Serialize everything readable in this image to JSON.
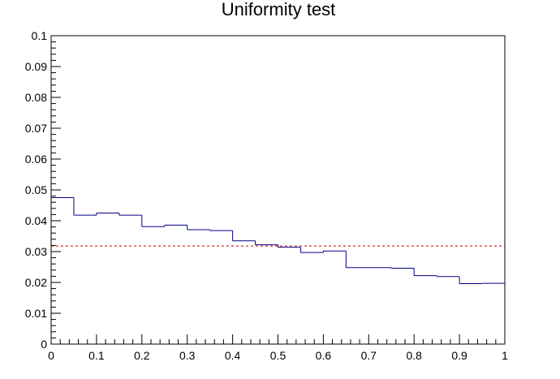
{
  "chart_data": {
    "type": "histogram",
    "title": "Uniformity test",
    "xlabel": "",
    "ylabel": "",
    "xlim": [
      0,
      1
    ],
    "ylim": [
      0,
      0.1
    ],
    "grid": false,
    "x_ticks": [
      "0",
      "0.1",
      "0.2",
      "0.3",
      "0.4",
      "0.5",
      "0.6",
      "0.7",
      "0.8",
      "0.9",
      "1"
    ],
    "y_ticks": [
      "0",
      "0.01",
      "0.02",
      "0.03",
      "0.04",
      "0.05",
      "0.06",
      "0.07",
      "0.08",
      "0.09",
      "0.1"
    ],
    "bin_edges": [
      0,
      0.05,
      0.1,
      0.15,
      0.2,
      0.25,
      0.3,
      0.35,
      0.4,
      0.45,
      0.5,
      0.55,
      0.6,
      0.65,
      0.7,
      0.75,
      0.8,
      0.85,
      0.9,
      0.95,
      1.0
    ],
    "values": [
      0.0475,
      0.0418,
      0.0425,
      0.0418,
      0.0381,
      0.0386,
      0.0371,
      0.0368,
      0.0335,
      0.0322,
      0.0314,
      0.0297,
      0.0302,
      0.0248,
      0.0248,
      0.0246,
      0.0222,
      0.0219,
      0.0196,
      0.0197
    ],
    "reference_line": {
      "y": 0.0318,
      "style": "dashed"
    },
    "colors": {
      "histogram": "#000080",
      "reference_line": "#cc0000",
      "axes": "#000000"
    }
  }
}
